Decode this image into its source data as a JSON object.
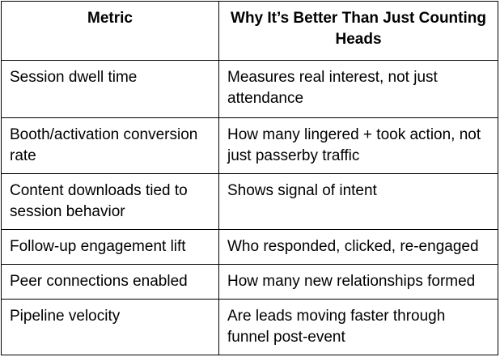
{
  "table": {
    "headers": [
      "Metric",
      "Why It’s Better Than Just Counting Heads"
    ],
    "rows": [
      {
        "metric": "Session dwell time",
        "benefit": "Measures real interest, not just attendance"
      },
      {
        "metric": "Booth/activation conversion rate",
        "benefit": "How many lingered + took action, not just passerby traffic"
      },
      {
        "metric": "Content downloads tied to session behavior",
        "benefit": "Shows signal of intent"
      },
      {
        "metric": "Follow-up engagement lift",
        "benefit": "Who responded, clicked, re-engaged"
      },
      {
        "metric": "Peer connections enabled",
        "benefit": "How many new relationships formed"
      },
      {
        "metric": "Pipeline velocity",
        "benefit": "Are leads moving faster through funnel post-event"
      }
    ],
    "colors": {
      "border": "#000000",
      "text": "#000000",
      "background": "#ffffff"
    }
  }
}
